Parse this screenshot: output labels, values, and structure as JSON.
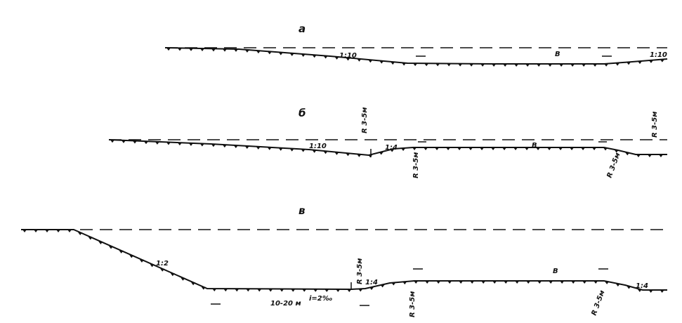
{
  "profiles": [
    {
      "label": "а",
      "slope_left": "1:10",
      "width_label": "В",
      "slope_right": "1:10"
    },
    {
      "label": "б",
      "slope_left": "1:10",
      "radius_top": "R 3-5м",
      "slope_mid": "1:4",
      "radius_1": "R 3-5м",
      "width_label": "В",
      "radius_2": "R 3-5м",
      "radius_3": "R 3-5м"
    },
    {
      "label": "в",
      "slope_left": "1:2",
      "bottom_width": "10-20 м",
      "gradient": "i=2‰",
      "radius_top": "R 3-5м",
      "slope_mid": "1:4",
      "radius_1": "R 3-5м",
      "width_label": "В",
      "radius_2": "R 3-5м",
      "slope_right": "1:4"
    }
  ]
}
